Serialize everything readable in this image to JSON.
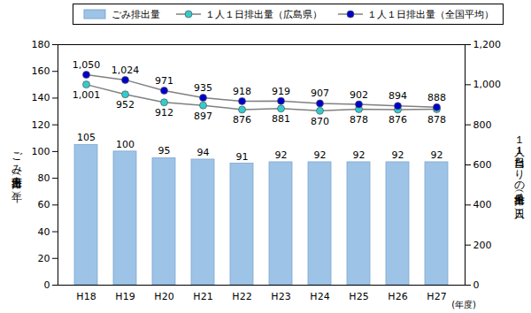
{
  "chart_data": {
    "type": "bar",
    "categories": [
      "H18",
      "H19",
      "H20",
      "H21",
      "H22",
      "H23",
      "H24",
      "H25",
      "H26",
      "H27"
    ],
    "xlabel": "(年度)",
    "ylabel": "ごみ排出量（万ｔ/年）",
    "y2label": "１人１日当たりの排出量（ｇ/人日）",
    "ylim": [
      0,
      180
    ],
    "yticks": [
      0,
      20,
      40,
      60,
      80,
      100,
      120,
      140,
      160,
      180
    ],
    "y2lim": [
      0,
      1200
    ],
    "y2ticks": [
      0,
      200,
      400,
      600,
      800,
      {
        "value": 1000,
        "label": "1,000"
      },
      {
        "value": 1200,
        "label": "1,200"
      }
    ],
    "grid": false,
    "legend": "top",
    "data_labels": true,
    "series": [
      {
        "name": "ごみ排出量",
        "type": "bar",
        "color": "#9dc3e6",
        "values": [
          105,
          100,
          95,
          94,
          91,
          92,
          92,
          92,
          92,
          92
        ]
      },
      {
        "name": "１人１日排出量（広島県）",
        "type": "line",
        "axis": "y2",
        "color": "#33cccc",
        "marker": "circle",
        "values": [
          1001,
          952,
          912,
          897,
          876,
          881,
          870,
          878,
          876,
          878
        ],
        "value_labels": [
          "1,001",
          "952",
          "912",
          "897",
          "876",
          "881",
          "870",
          "878",
          "876",
          "878"
        ]
      },
      {
        "name": "１人１日排出量（全国平均）",
        "type": "line",
        "axis": "y2",
        "color": "#0000cc",
        "marker": "circle",
        "values": [
          1050,
          1024,
          971,
          935,
          918,
          919,
          907,
          902,
          894,
          888
        ],
        "value_labels": [
          "1,050",
          "1,024",
          "971",
          "935",
          "918",
          "919",
          "907",
          "902",
          "894",
          "888"
        ]
      }
    ]
  }
}
